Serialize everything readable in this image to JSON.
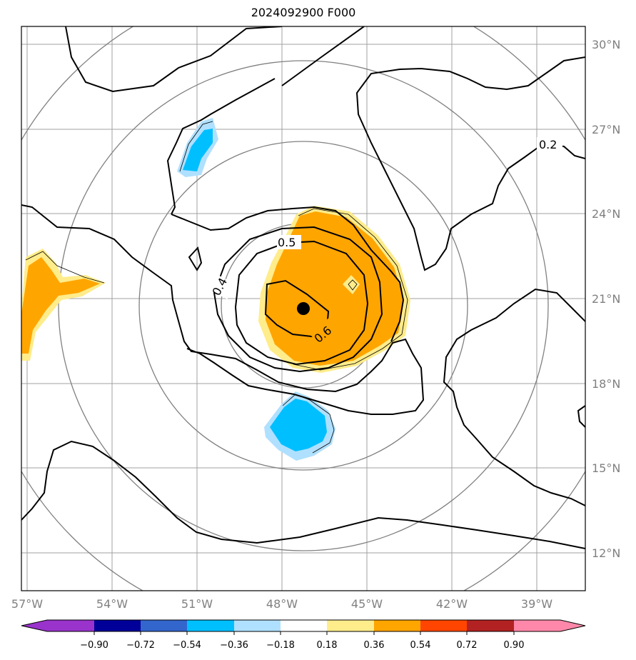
{
  "title": "2024092900 F000",
  "map": {
    "lon_ticks": [
      "57°W",
      "54°W",
      "51°W",
      "48°W",
      "45°W",
      "42°W",
      "39°W"
    ],
    "lat_ticks": [
      "30°N",
      "27°N",
      "24°N",
      "21°N",
      "18°N",
      "15°N",
      "12°N"
    ],
    "contour_labels": [
      "0.2",
      "0.5",
      "0.4",
      "0.6"
    ],
    "center_marker": "storm-center"
  },
  "colorbar": {
    "ticks": [
      "−0.90",
      "−0.72",
      "−0.54",
      "−0.36",
      "−0.18",
      "0.18",
      "0.36",
      "0.54",
      "0.72",
      "0.90"
    ],
    "colors": [
      "#9933cc",
      "#000099",
      "#3366cc",
      "#00bfff",
      "#b0e0ff",
      "#ffffff",
      "#ffec8b",
      "#ffa500",
      "#ff4500",
      "#b22222",
      "#ff88aa"
    ]
  }
}
